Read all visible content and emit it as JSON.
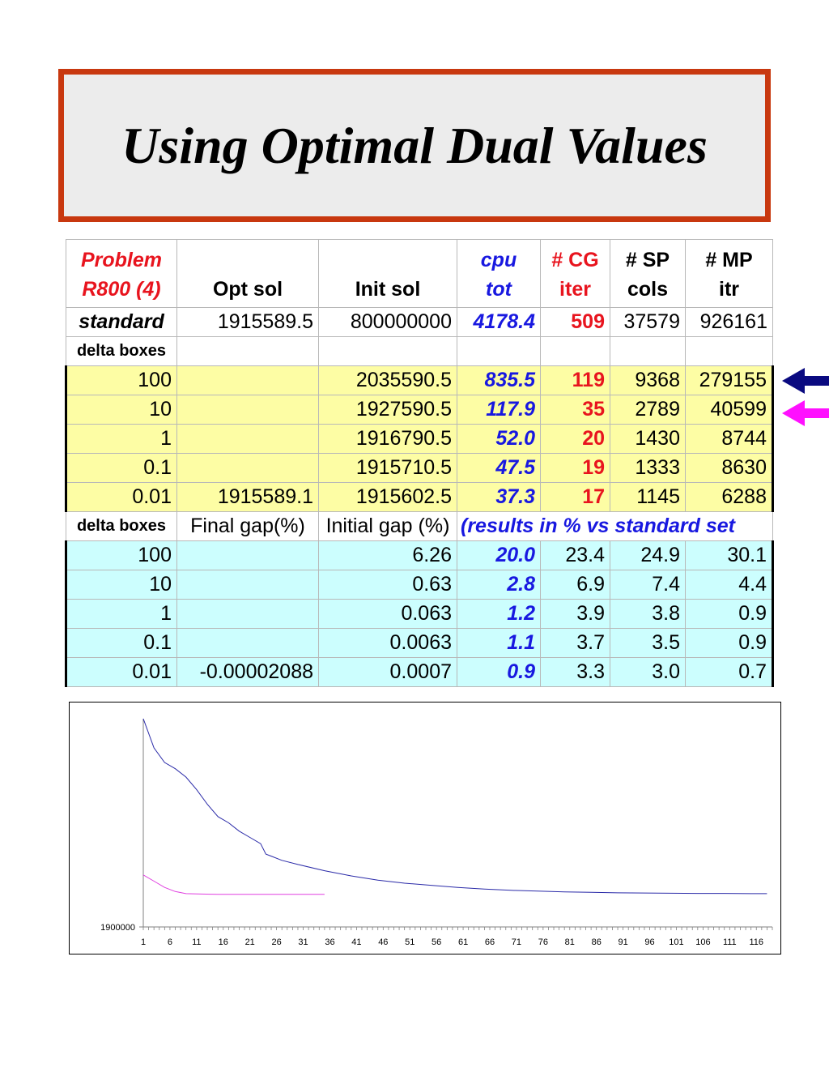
{
  "title": "Using Optimal Dual Values",
  "table": {
    "header": {
      "problem_line1": "Problem",
      "problem_line2": "R800 (4)",
      "opt_sol": "Opt sol",
      "init_sol": "Init sol",
      "cpu_line1": "cpu",
      "cpu_line2": "tot",
      "cg_line1": "# CG",
      "cg_line2": "iter",
      "sp_line1": "# SP",
      "sp_line2": "cols",
      "mp_line1": "# MP",
      "mp_line2": "itr"
    },
    "standard": {
      "label": "standard",
      "opt_sol": "1915589.5",
      "init_sol": "800000000",
      "cpu": "4178.4",
      "cg": "509",
      "sp": "37579",
      "mp": "926161"
    },
    "section1_label": "delta boxes",
    "section1_rows": [
      {
        "delta": "100",
        "opt_sol": "",
        "init_sol": "2035590.5",
        "cpu": "835.5",
        "cg": "119",
        "sp": "9368",
        "mp": "279155"
      },
      {
        "delta": "10",
        "opt_sol": "",
        "init_sol": "1927590.5",
        "cpu": "117.9",
        "cg": "35",
        "sp": "2789",
        "mp": "40599"
      },
      {
        "delta": "1",
        "opt_sol": "",
        "init_sol": "1916790.5",
        "cpu": "52.0",
        "cg": "20",
        "sp": "1430",
        "mp": "8744"
      },
      {
        "delta": "0.1",
        "opt_sol": "",
        "init_sol": "1915710.5",
        "cpu": "47.5",
        "cg": "19",
        "sp": "1333",
        "mp": "8630"
      },
      {
        "delta": "0.01",
        "opt_sol": "1915589.1",
        "init_sol": "1915602.5",
        "cpu": "37.3",
        "cg": "17",
        "sp": "1145",
        "mp": "6288"
      }
    ],
    "section2": {
      "label": "delta boxes",
      "final_gap": "Final gap(%)",
      "initial_gap": "Initial gap (%)",
      "note": "(results in % vs standard set"
    },
    "section2_rows": [
      {
        "delta": "100",
        "final_gap": "",
        "initial_gap": "6.26",
        "cpu": "20.0",
        "cg": "23.4",
        "sp": "24.9",
        "mp": "30.1"
      },
      {
        "delta": "10",
        "final_gap": "",
        "initial_gap": "0.63",
        "cpu": "2.8",
        "cg": "6.9",
        "sp": "7.4",
        "mp": "4.4"
      },
      {
        "delta": "1",
        "final_gap": "",
        "initial_gap": "0.063",
        "cpu": "1.2",
        "cg": "3.9",
        "sp": "3.8",
        "mp": "0.9"
      },
      {
        "delta": "0.1",
        "final_gap": "",
        "initial_gap": "0.0063",
        "cpu": "1.1",
        "cg": "3.7",
        "sp": "3.5",
        "mp": "0.9"
      },
      {
        "delta": "0.01",
        "final_gap": "-0.00002088",
        "initial_gap": "0.0007",
        "cpu": "0.9",
        "cg": "3.3",
        "sp": "3.0",
        "mp": "0.7"
      }
    ]
  },
  "arrows": [
    {
      "name": "navy-arrow",
      "color": "#0a0a80",
      "points_to": "100"
    },
    {
      "name": "magenta-arrow",
      "color": "#ff10ff",
      "points_to": "10"
    }
  ],
  "chart_data": {
    "type": "line",
    "title": "",
    "xlabel": "",
    "ylabel": "",
    "y_tick_label": "1900000",
    "x_tick_labels": [
      "1",
      "6",
      "11",
      "16",
      "21",
      "26",
      "31",
      "36",
      "41",
      "46",
      "51",
      "56",
      "61",
      "66",
      "71",
      "76",
      "81",
      "86",
      "91",
      "96",
      "101",
      "106",
      "111",
      "116"
    ],
    "series": [
      {
        "color": "#2a2aa8",
        "x": [
          1,
          3,
          5,
          7,
          9,
          11,
          13,
          15,
          17,
          19,
          21,
          23,
          24,
          25,
          27,
          30,
          35,
          40,
          45,
          50,
          55,
          60,
          65,
          70,
          75,
          80,
          85,
          90,
          95,
          100,
          105,
          110,
          115,
          118
        ],
        "y": [
          1.0,
          0.86,
          0.79,
          0.76,
          0.72,
          0.66,
          0.59,
          0.53,
          0.5,
          0.46,
          0.43,
          0.4,
          0.35,
          0.34,
          0.32,
          0.3,
          0.27,
          0.245,
          0.225,
          0.21,
          0.2,
          0.19,
          0.182,
          0.176,
          0.172,
          0.168,
          0.166,
          0.164,
          0.163,
          0.162,
          0.161,
          0.161,
          0.16,
          0.16
        ]
      },
      {
        "color": "#e040e0",
        "x": [
          1,
          3,
          5,
          7,
          9,
          12,
          15,
          20,
          25,
          30,
          35
        ],
        "y": [
          0.25,
          0.22,
          0.19,
          0.17,
          0.16,
          0.158,
          0.157,
          0.157,
          0.157,
          0.157,
          0.157
        ]
      }
    ]
  }
}
